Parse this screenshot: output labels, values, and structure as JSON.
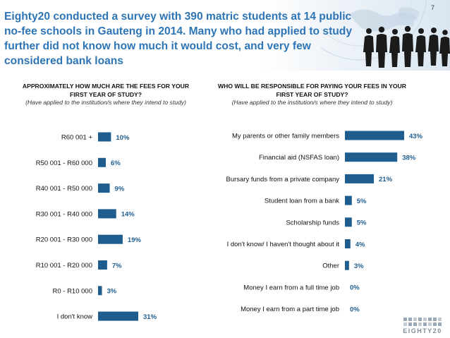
{
  "page_number": "7",
  "title": "Eighty20 conducted a survey with 390 matric students at 14 public no-fee schools in Gauteng in 2014. Many who had applied to study further did not know how much it would cost, and very few considered bank loans",
  "logo_text": "EIGHTY20",
  "colors": {
    "title": "#2e75b6",
    "bar": "#1f5d8f",
    "value_label": "#1f5d8f"
  },
  "chart_data": [
    {
      "type": "bar",
      "orientation": "horizontal",
      "title": "APPROXIMATELY HOW MUCH ARE THE FEES FOR YOUR FIRST YEAR OF STUDY?",
      "subtitle": "(Have applied to the institution/s where they intend to study)",
      "categories": [
        "R60 001 +",
        "R50 001 - R60 000",
        "R40 001 - R50 000",
        "R30 001 - R40 000",
        "R20 001 - R30 000",
        "R10 001 - R20 000",
        "R0 - R10 000",
        "I don't know"
      ],
      "values": [
        10,
        6,
        9,
        14,
        19,
        7,
        3,
        31
      ],
      "value_labels": [
        "10%",
        "6%",
        "9%",
        "14%",
        "19%",
        "7%",
        "3%",
        "31%"
      ],
      "xlim": [
        0,
        31
      ]
    },
    {
      "type": "bar",
      "orientation": "horizontal",
      "title": "WHO WILL BE RESPONSIBLE FOR PAYING YOUR FEES IN YOUR FIRST YEAR OF STUDY?",
      "subtitle": "(Have applied to the institution/s where they intend to study)",
      "categories": [
        "My parents or other family members",
        "Financial aid (NSFAS loan)",
        "Bursary funds from a private company",
        "Student loan from a bank",
        "Scholarship funds",
        "I don't know/ I haven't thought about it",
        "Other",
        "Money I earn from a full time job",
        "Money I earn from a part time job"
      ],
      "values": [
        43,
        38,
        21,
        5,
        5,
        4,
        3,
        0,
        0
      ],
      "value_labels": [
        "43%",
        "38%",
        "21%",
        "5%",
        "5%",
        "4%",
        "3%",
        "0%",
        "0%"
      ],
      "xlim": [
        0,
        43
      ]
    }
  ]
}
